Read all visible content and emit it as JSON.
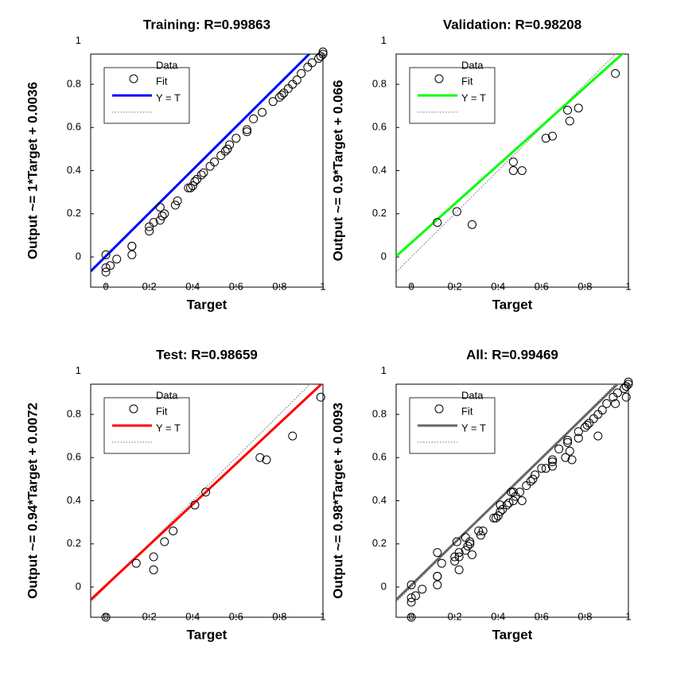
{
  "chart_data": [
    {
      "type": "scatter",
      "title": "Training: R=0.99863",
      "xlabel": "Target",
      "ylabel": "Output ~= 1*Target + 0.0036",
      "xlim": [
        -0.07,
        1.0
      ],
      "ylim": [
        -0.14,
        0.94
      ],
      "xticks": [
        0,
        0.2,
        0.4,
        0.6,
        0.8,
        1
      ],
      "yticks": [
        0,
        0.2,
        0.4,
        0.6,
        0.8,
        1
      ],
      "series": [
        {
          "name": "Data",
          "color": "#000000",
          "x": [
            0.0,
            0.0,
            0.0,
            0.02,
            0.05,
            0.12,
            0.12,
            0.12,
            0.2,
            0.2,
            0.22,
            0.25,
            0.25,
            0.26,
            0.27,
            0.32,
            0.33,
            0.38,
            0.39,
            0.4,
            0.41,
            0.42,
            0.44,
            0.45,
            0.48,
            0.5,
            0.53,
            0.55,
            0.56,
            0.57,
            0.6,
            0.65,
            0.65,
            0.68,
            0.72,
            0.77,
            0.8,
            0.81,
            0.82,
            0.84,
            0.86,
            0.88,
            0.9,
            0.93,
            0.95,
            0.98,
            0.99,
            1.0,
            1.0
          ],
          "values": [
            0.01,
            -0.05,
            -0.07,
            -0.04,
            -0.01,
            0.05,
            0.05,
            0.01,
            0.12,
            0.14,
            0.16,
            0.17,
            0.23,
            0.19,
            0.2,
            0.24,
            0.26,
            0.32,
            0.32,
            0.33,
            0.35,
            0.36,
            0.38,
            0.39,
            0.42,
            0.44,
            0.47,
            0.49,
            0.5,
            0.52,
            0.55,
            0.58,
            0.59,
            0.64,
            0.67,
            0.72,
            0.74,
            0.75,
            0.76,
            0.78,
            0.8,
            0.82,
            0.85,
            0.88,
            0.9,
            0.92,
            0.93,
            0.94,
            0.95
          ]
        }
      ],
      "fit": {
        "name": "Fit",
        "color": "#0000ff",
        "slope": 1,
        "intercept": 0.0036
      },
      "identity": {
        "name": "Y = T"
      }
    },
    {
      "type": "scatter",
      "title": "Validation: R=0.98208",
      "xlabel": "Target",
      "ylabel": "Output ~= 0.9*Target + 0.066",
      "xlim": [
        -0.07,
        1.0
      ],
      "ylim": [
        -0.14,
        0.94
      ],
      "xticks": [
        0,
        0.2,
        0.4,
        0.6,
        0.8,
        1
      ],
      "yticks": [
        0,
        0.2,
        0.4,
        0.6,
        0.8,
        1
      ],
      "series": [
        {
          "name": "Data",
          "color": "#000000",
          "x": [
            0.12,
            0.21,
            0.28,
            0.47,
            0.47,
            0.51,
            0.62,
            0.65,
            0.72,
            0.73,
            0.77,
            0.94
          ],
          "values": [
            0.16,
            0.21,
            0.15,
            0.44,
            0.4,
            0.4,
            0.55,
            0.56,
            0.68,
            0.63,
            0.69,
            0.85
          ]
        }
      ],
      "fit": {
        "name": "Fit",
        "color": "#00ff00",
        "slope": 0.9,
        "intercept": 0.066
      },
      "identity": {
        "name": "Y = T"
      }
    },
    {
      "type": "scatter",
      "title": "Test: R=0.98659",
      "xlabel": "Target",
      "ylabel": "Output ~= 0.94*Target + 0.0072",
      "xlim": [
        -0.07,
        1.0
      ],
      "ylim": [
        -0.14,
        0.94
      ],
      "xticks": [
        0,
        0.2,
        0.4,
        0.6,
        0.8,
        1
      ],
      "yticks": [
        0,
        0.2,
        0.4,
        0.6,
        0.8,
        1
      ],
      "series": [
        {
          "name": "Data",
          "color": "#000000",
          "x": [
            0.0,
            0.14,
            0.22,
            0.22,
            0.27,
            0.31,
            0.41,
            0.46,
            0.71,
            0.74,
            0.86,
            0.99
          ],
          "values": [
            -0.14,
            0.11,
            0.14,
            0.08,
            0.21,
            0.26,
            0.38,
            0.44,
            0.6,
            0.59,
            0.7,
            0.88
          ]
        }
      ],
      "fit": {
        "name": "Fit",
        "color": "#ff0000",
        "slope": 0.94,
        "intercept": 0.0072
      },
      "identity": {
        "name": "Y = T"
      }
    },
    {
      "type": "scatter",
      "title": "All: R=0.99469",
      "xlabel": "Target",
      "ylabel": "Output ~= 0.98*Target + 0.0093",
      "xlim": [
        -0.07,
        1.0
      ],
      "ylim": [
        -0.14,
        0.94
      ],
      "xticks": [
        0,
        0.2,
        0.4,
        0.6,
        0.8,
        1
      ],
      "yticks": [
        0,
        0.2,
        0.4,
        0.6,
        0.8,
        1
      ],
      "series": [
        {
          "name": "Data",
          "color": "#000000",
          "x": [
            0.0,
            0.0,
            0.0,
            0.02,
            0.05,
            0.12,
            0.12,
            0.12,
            0.2,
            0.2,
            0.22,
            0.25,
            0.25,
            0.26,
            0.27,
            0.32,
            0.33,
            0.38,
            0.39,
            0.4,
            0.41,
            0.42,
            0.44,
            0.45,
            0.48,
            0.5,
            0.53,
            0.55,
            0.56,
            0.57,
            0.6,
            0.65,
            0.65,
            0.68,
            0.72,
            0.77,
            0.8,
            0.81,
            0.82,
            0.84,
            0.86,
            0.88,
            0.9,
            0.93,
            0.95,
            0.98,
            0.99,
            1.0,
            1.0,
            0.12,
            0.21,
            0.28,
            0.47,
            0.47,
            0.51,
            0.62,
            0.65,
            0.72,
            0.73,
            0.77,
            0.94,
            0.0,
            0.14,
            0.22,
            0.22,
            0.27,
            0.31,
            0.41,
            0.46,
            0.71,
            0.74,
            0.86,
            0.99
          ],
          "values": [
            0.01,
            -0.05,
            -0.07,
            -0.04,
            -0.01,
            0.05,
            0.05,
            0.01,
            0.12,
            0.14,
            0.16,
            0.17,
            0.23,
            0.19,
            0.2,
            0.24,
            0.26,
            0.32,
            0.32,
            0.33,
            0.35,
            0.36,
            0.38,
            0.39,
            0.42,
            0.44,
            0.47,
            0.49,
            0.5,
            0.52,
            0.55,
            0.58,
            0.59,
            0.64,
            0.67,
            0.72,
            0.74,
            0.75,
            0.76,
            0.78,
            0.8,
            0.82,
            0.85,
            0.88,
            0.9,
            0.92,
            0.93,
            0.94,
            0.95,
            0.16,
            0.21,
            0.15,
            0.44,
            0.4,
            0.4,
            0.55,
            0.56,
            0.68,
            0.63,
            0.69,
            0.85,
            -0.14,
            0.11,
            0.14,
            0.08,
            0.21,
            0.26,
            0.38,
            0.44,
            0.6,
            0.59,
            0.7,
            0.88
          ]
        }
      ],
      "fit": {
        "name": "Fit",
        "color": "#666666",
        "slope": 0.98,
        "intercept": 0.0093
      },
      "identity": {
        "name": "Y = T"
      }
    }
  ]
}
